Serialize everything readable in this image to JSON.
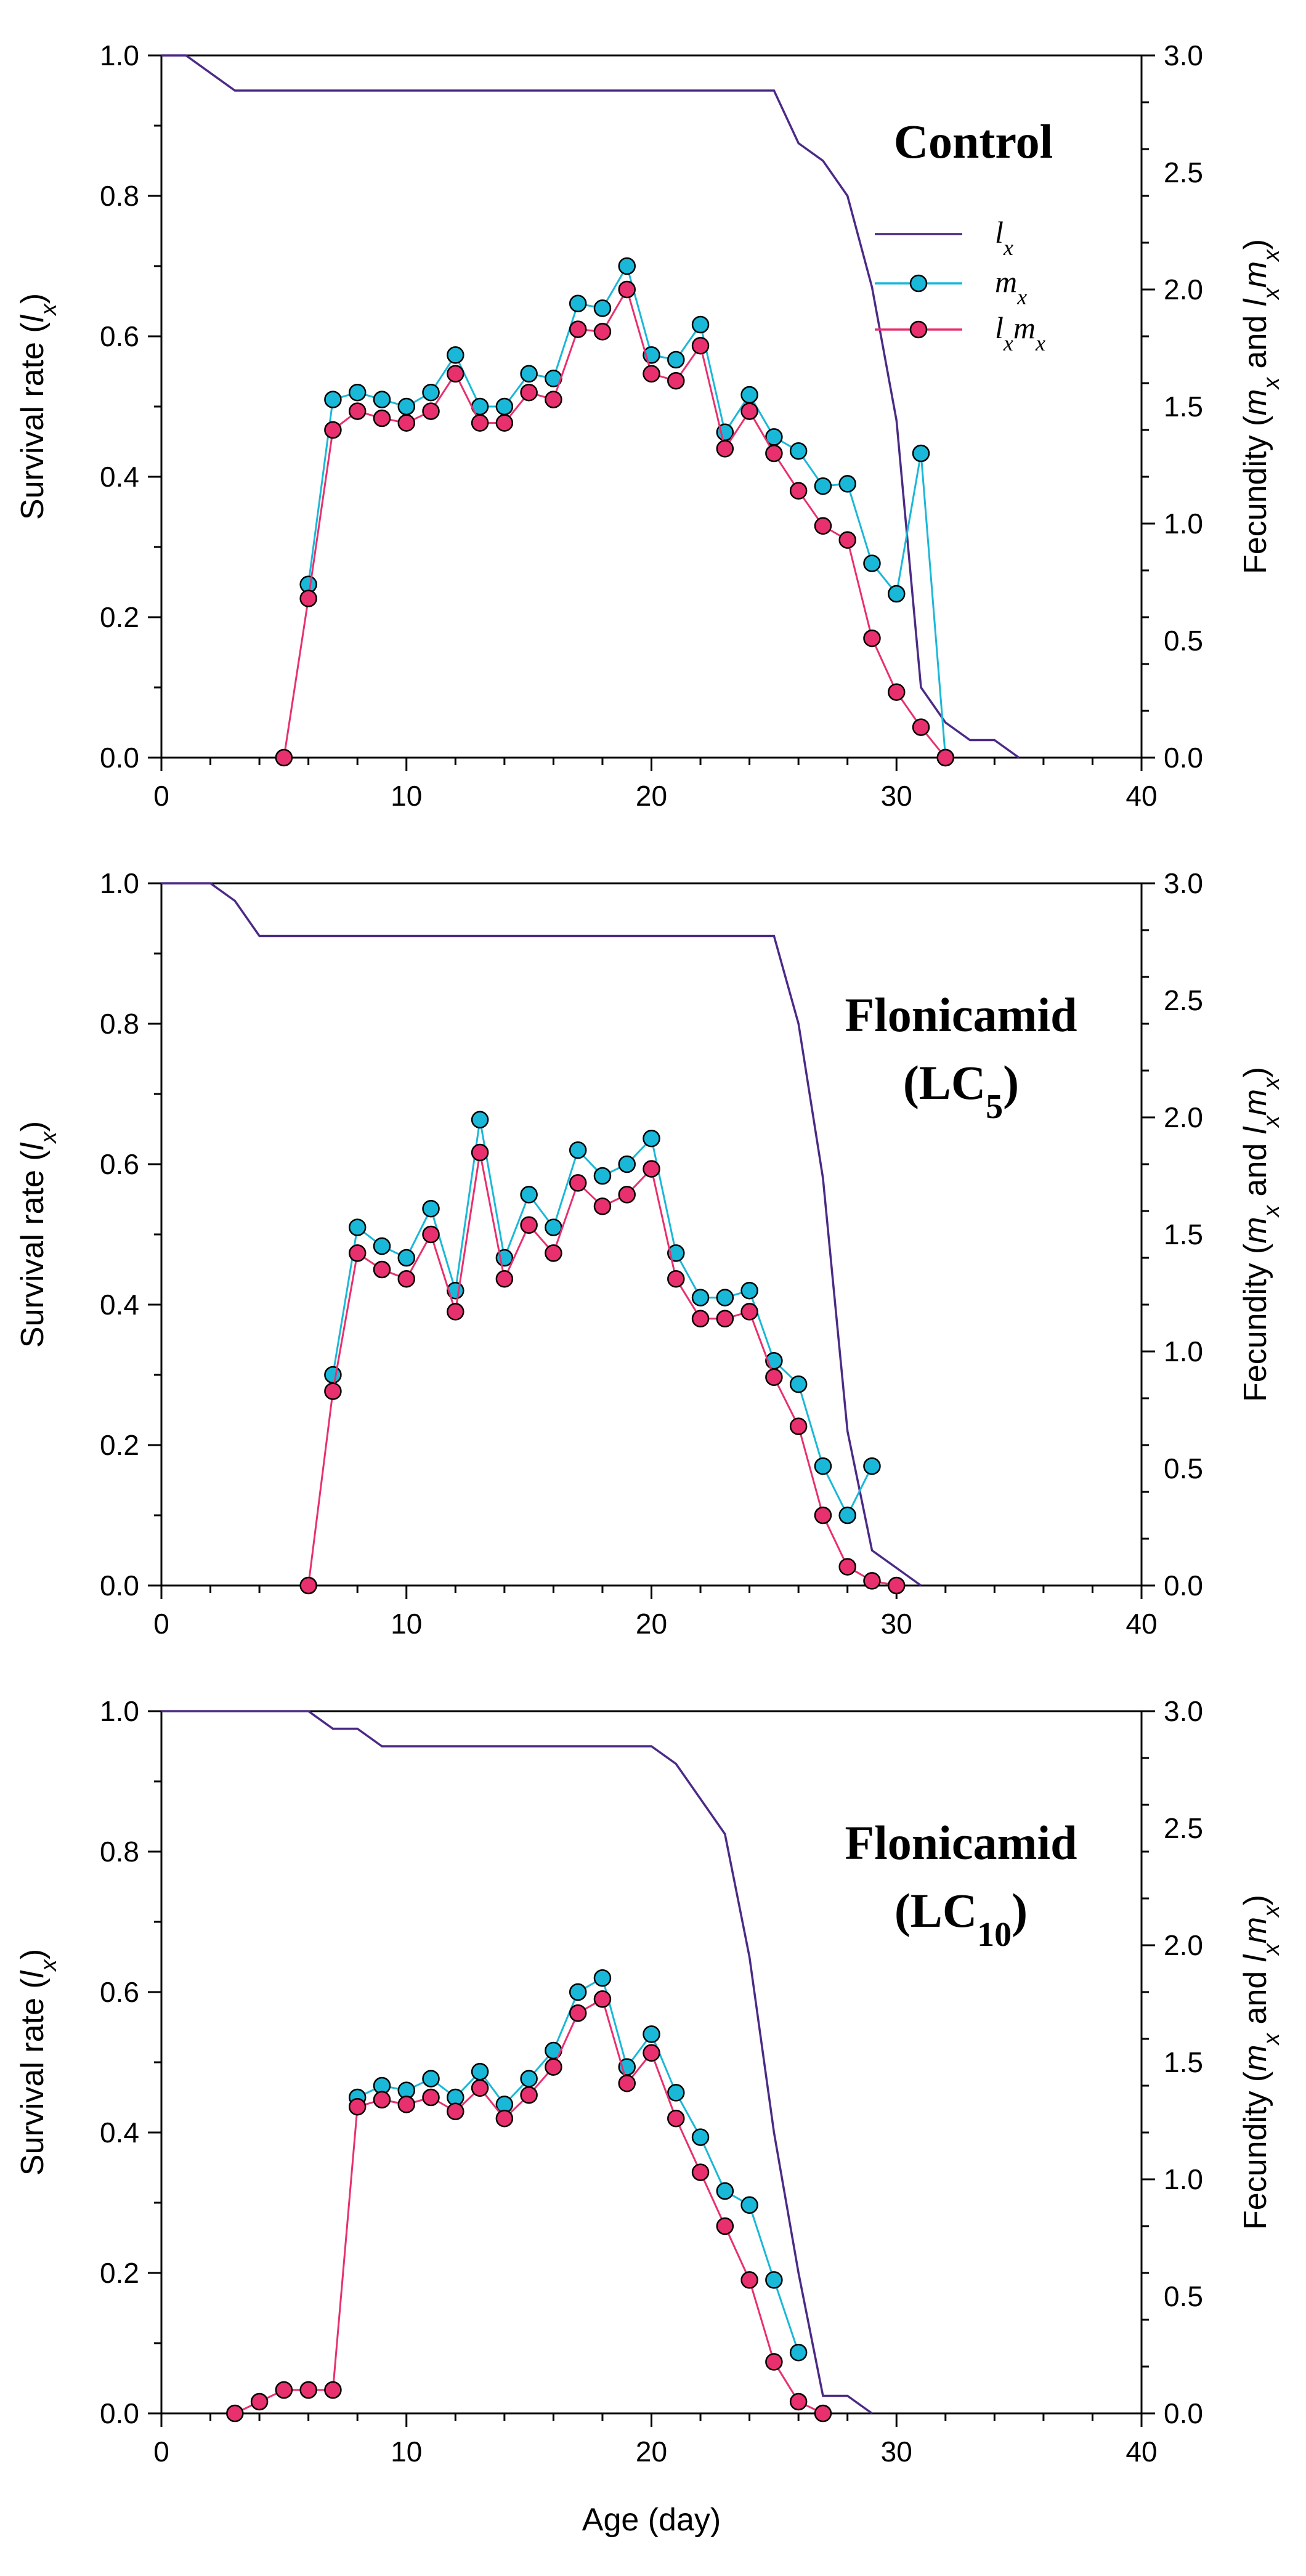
{
  "chart_data": [
    {
      "type": "line",
      "title": "Control",
      "title_subscript": "",
      "xlabel": "",
      "ylabel": "Survival rate (l_x)",
      "y2label": "Fecundity (m_x and l_x m_x)",
      "xlim": [
        0,
        40
      ],
      "ylim": [
        0,
        1.0
      ],
      "y2lim": [
        0,
        3.0
      ],
      "x_ticks": [
        "0",
        "10",
        "20",
        "30",
        "40"
      ],
      "y_ticks": [
        "0.0",
        "0.2",
        "0.4",
        "0.6",
        "0.8",
        "1.0"
      ],
      "y2_ticks": [
        "0.0",
        "0.5",
        "1.0",
        "1.5",
        "2.0",
        "2.5",
        "3.0"
      ],
      "legend": [
        "l_x",
        "m_x",
        "l_x m_x"
      ],
      "series": [
        {
          "name": "l_x",
          "axis": "left",
          "style": "line",
          "color": "#4b2a86",
          "x": [
            0,
            1,
            3,
            25,
            26,
            27,
            28,
            29,
            30,
            31,
            32,
            33,
            34,
            35
          ],
          "y": [
            1.0,
            1.0,
            0.95,
            0.95,
            0.875,
            0.85,
            0.8,
            0.67,
            0.48,
            0.1,
            0.05,
            0.025,
            0.025,
            0.0
          ]
        },
        {
          "name": "m_x",
          "axis": "right",
          "style": "markers",
          "color": "#1ab8d8",
          "x": [
            6,
            7,
            8,
            9,
            10,
            11,
            12,
            13,
            14,
            15,
            16,
            17,
            18,
            19,
            20,
            21,
            22,
            23,
            24,
            25,
            26,
            27,
            28,
            29,
            30,
            31,
            32
          ],
          "y": [
            0.74,
            1.53,
            1.56,
            1.53,
            1.5,
            1.56,
            1.72,
            1.5,
            1.5,
            1.64,
            1.62,
            1.94,
            1.92,
            2.1,
            1.72,
            1.7,
            1.85,
            1.39,
            1.55,
            1.37,
            1.31,
            1.16,
            1.17,
            0.83,
            0.7,
            1.3,
            0.0
          ]
        },
        {
          "name": "l_x m_x",
          "axis": "right",
          "style": "markers",
          "color": "#e8306e",
          "x": [
            5,
            6,
            7,
            8,
            9,
            10,
            11,
            12,
            13,
            14,
            15,
            16,
            17,
            18,
            19,
            20,
            21,
            22,
            23,
            24,
            25,
            26,
            27,
            28,
            29,
            30,
            31,
            32
          ],
          "y": [
            0.0,
            0.68,
            1.4,
            1.48,
            1.45,
            1.43,
            1.48,
            1.64,
            1.43,
            1.43,
            1.56,
            1.53,
            1.83,
            1.82,
            2.0,
            1.64,
            1.61,
            1.76,
            1.32,
            1.48,
            1.3,
            1.14,
            0.99,
            0.93,
            0.51,
            0.28,
            0.13,
            0.0
          ]
        }
      ]
    },
    {
      "type": "line",
      "title": "Flonicamid",
      "title_paren": "(LC",
      "title_subscript": "5",
      "xlabel": "",
      "ylabel": "Survival rate (l_x)",
      "y2label": "Fecundity (m_x and l_x m_x)",
      "xlim": [
        0,
        40
      ],
      "ylim": [
        0,
        1.0
      ],
      "y2lim": [
        0,
        3.0
      ],
      "x_ticks": [
        "0",
        "10",
        "20",
        "30",
        "40"
      ],
      "y_ticks": [
        "0.0",
        "0.2",
        "0.4",
        "0.6",
        "0.8",
        "1.0"
      ],
      "y2_ticks": [
        "0.0",
        "0.5",
        "1.0",
        "1.5",
        "2.0",
        "2.5",
        "3.0"
      ],
      "series": [
        {
          "name": "l_x",
          "axis": "left",
          "style": "line",
          "color": "#4b2a86",
          "x": [
            0,
            2,
            3,
            4,
            25,
            26,
            27,
            28,
            29,
            30,
            31
          ],
          "y": [
            1.0,
            1.0,
            0.975,
            0.925,
            0.925,
            0.8,
            0.58,
            0.22,
            0.05,
            0.025,
            0.0
          ]
        },
        {
          "name": "m_x",
          "axis": "right",
          "style": "markers",
          "color": "#1ab8d8",
          "x": [
            7,
            8,
            9,
            10,
            11,
            12,
            13,
            14,
            15,
            16,
            17,
            18,
            19,
            20,
            21,
            22,
            23,
            24,
            25,
            26,
            27,
            28,
            29
          ],
          "y": [
            0.9,
            1.53,
            1.45,
            1.4,
            1.61,
            1.26,
            1.99,
            1.4,
            1.67,
            1.53,
            1.86,
            1.75,
            1.8,
            1.91,
            1.42,
            1.23,
            1.23,
            1.26,
            0.96,
            0.86,
            0.51,
            0.3,
            0.51
          ]
        },
        {
          "name": "l_x m_x",
          "axis": "right",
          "style": "markers",
          "color": "#e8306e",
          "x": [
            6,
            7,
            8,
            9,
            10,
            11,
            12,
            13,
            14,
            15,
            16,
            17,
            18,
            19,
            20,
            21,
            22,
            23,
            24,
            25,
            26,
            27,
            28,
            29,
            30
          ],
          "y": [
            0.0,
            0.83,
            1.42,
            1.35,
            1.31,
            1.5,
            1.17,
            1.85,
            1.31,
            1.54,
            1.42,
            1.72,
            1.62,
            1.67,
            1.78,
            1.31,
            1.14,
            1.14,
            1.17,
            0.89,
            0.68,
            0.3,
            0.08,
            0.02,
            0.0
          ]
        }
      ]
    },
    {
      "type": "line",
      "title": "Flonicamid",
      "title_paren": "(LC",
      "title_subscript": "10",
      "xlabel": "Age (day)",
      "ylabel": "Survival rate (l_x)",
      "y2label": "Fecundity (m_x and l_x m_x)",
      "xlim": [
        0,
        40
      ],
      "ylim": [
        0,
        1.0
      ],
      "y2lim": [
        0,
        3.0
      ],
      "x_ticks": [
        "0",
        "10",
        "20",
        "30",
        "40"
      ],
      "y_ticks": [
        "0.0",
        "0.2",
        "0.4",
        "0.6",
        "0.8",
        "1.0"
      ],
      "y2_ticks": [
        "0.0",
        "0.5",
        "1.0",
        "1.5",
        "2.0",
        "2.5",
        "3.0"
      ],
      "series": [
        {
          "name": "l_x",
          "axis": "left",
          "style": "line",
          "color": "#4b2a86",
          "x": [
            0,
            6,
            7,
            8,
            9,
            20,
            21,
            22,
            23,
            24,
            25,
            26,
            27,
            28,
            29
          ],
          "y": [
            1.0,
            1.0,
            0.975,
            0.975,
            0.95,
            0.95,
            0.925,
            0.875,
            0.825,
            0.65,
            0.4,
            0.2,
            0.025,
            0.025,
            0.0
          ]
        },
        {
          "name": "m_x",
          "axis": "right",
          "style": "markers",
          "color": "#1ab8d8",
          "x": [
            8,
            9,
            10,
            11,
            12,
            13,
            14,
            15,
            16,
            17,
            18,
            19,
            20,
            21,
            22,
            23,
            24,
            25,
            26
          ],
          "y": [
            1.35,
            1.4,
            1.38,
            1.43,
            1.35,
            1.46,
            1.32,
            1.43,
            1.55,
            1.8,
            1.86,
            1.48,
            1.62,
            1.37,
            1.18,
            0.95,
            0.89,
            0.57,
            0.26
          ]
        },
        {
          "name": "l_x m_x",
          "axis": "right",
          "style": "markers",
          "color": "#e8306e",
          "x": [
            3,
            4,
            5,
            6,
            7,
            8,
            9,
            10,
            11,
            12,
            13,
            14,
            15,
            16,
            17,
            18,
            19,
            20,
            21,
            22,
            23,
            24,
            25,
            26,
            27
          ],
          "y": [
            0.0,
            0.05,
            0.1,
            0.1,
            0.1,
            1.31,
            1.34,
            1.32,
            1.35,
            1.29,
            1.39,
            1.26,
            1.36,
            1.48,
            1.71,
            1.77,
            1.41,
            1.54,
            1.26,
            1.03,
            0.8,
            0.57,
            0.22,
            0.05,
            0.0
          ]
        }
      ]
    }
  ]
}
